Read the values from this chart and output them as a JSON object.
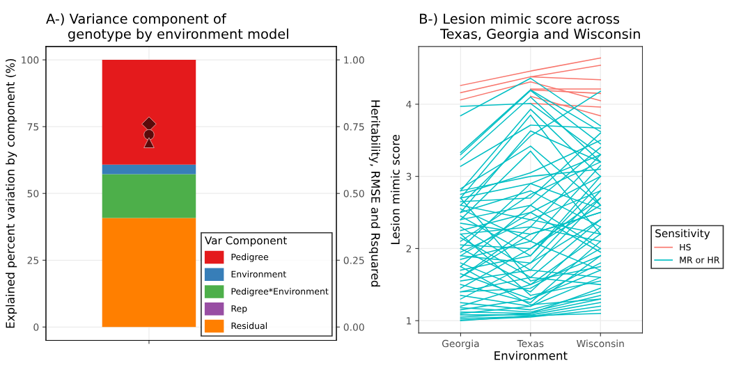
{
  "chart_data": [
    {
      "type": "bar",
      "stacked": true,
      "title": "A-) Variance component of\n     genotype by environment model",
      "ylabel": "Explained percent variation by component (%)",
      "y2label": "Heritability, RMSE and Rsquared",
      "legend_title": "Var Component",
      "legend": "bottom right",
      "grid": true,
      "categories": [
        null
      ],
      "ylim": [
        -5,
        105
      ],
      "yticks": [
        0,
        25,
        50,
        75,
        100
      ],
      "y2lim": [
        -0.05,
        1.05
      ],
      "y2ticks": [
        {
          "value": 0,
          "label": "0.00"
        },
        {
          "value": 0.25,
          "label": "0.25"
        },
        {
          "value": 0.5,
          "label": "0.50"
        },
        {
          "value": 0.75,
          "label": "0.75"
        },
        {
          "value": 1,
          "label": "1.00"
        }
      ],
      "series": [
        {
          "name": "Residual",
          "color": "#ff7f00",
          "values": [
            40.8
          ]
        },
        {
          "name": "Rep",
          "color": "#984ea3",
          "values": [
            0
          ]
        },
        {
          "name": "Pedigree*Environment",
          "color": "#4daf4a",
          "values": [
            16.4
          ]
        },
        {
          "name": "Environment",
          "color": "#377eb8",
          "values": [
            3.6
          ]
        },
        {
          "name": "Pedigree",
          "color": "#e41a1c",
          "values": [
            39.2
          ]
        },
        {
          "type": "scatter",
          "axis": "y2",
          "marker": "diamond",
          "color": "#5a0b0b",
          "values": [
            0.76
          ]
        },
        {
          "type": "scatter",
          "axis": "y2",
          "marker": "circle",
          "color": "#5a0b0b",
          "values": [
            0.72
          ]
        },
        {
          "type": "scatter",
          "axis": "y2",
          "marker": "triangle",
          "color": "#5a0b0b",
          "values": [
            0.69
          ]
        }
      ]
    },
    {
      "type": "line",
      "title": "B-) Lesion mimic score across\n     Texas, Georgia and Wisconsin",
      "xlabel": "Environment",
      "ylabel": "Lesion mimic score",
      "legend_title": "Sensitivity",
      "legend": "right",
      "grid": true,
      "categories": [
        "Georgia",
        "Texas",
        "Wisconsin"
      ],
      "ylim": [
        0.83,
        4.8
      ],
      "yticks": [
        1,
        2,
        3,
        4
      ],
      "series": [
        {
          "name": "HS",
          "color": "#f8766d",
          "values": [
            4.26,
            4.46,
            4.64
          ]
        },
        {
          "color": "#f8766d",
          "values": [
            4.16,
            4.38,
            4.54
          ]
        },
        {
          "color": "#f8766d",
          "values": [
            4.06,
            4.31,
            4.05
          ]
        },
        {
          "color": "#f8766d",
          "values": [
            null,
            4.38,
            4.34
          ]
        },
        {
          "color": "#f8766d",
          "values": [
            null,
            4.21,
            4.21
          ]
        },
        {
          "color": "#f8766d",
          "values": [
            null,
            4.2,
            4.15
          ]
        },
        {
          "color": "#f8766d",
          "values": [
            null,
            4.11,
            3.84
          ]
        },
        {
          "color": "#f8766d",
          "values": [
            null,
            4.01,
            3.96
          ]
        },
        {
          "name": "MR or HR",
          "color": "#00bfc4",
          "values": [
            3.84,
            4.36,
            3.7
          ]
        },
        {
          "color": "#00bfc4",
          "values": [
            3.97,
            4.01,
            3.3
          ]
        },
        {
          "color": "#00bfc4",
          "values": [
            3.33,
            4.2,
            3.62
          ]
        },
        {
          "color": "#00bfc4",
          "values": [
            3.3,
            4.19,
            3.45
          ]
        },
        {
          "color": "#00bfc4",
          "values": [
            3.23,
            4.1,
            3.2
          ]
        },
        {
          "color": "#00bfc4",
          "values": [
            2.8,
            3.93,
            3.0
          ]
        },
        {
          "color": "#00bfc4",
          "values": [
            2.7,
            3.85,
            2.6
          ]
        },
        {
          "color": "#00bfc4",
          "values": [
            3.14,
            3.71,
            3.67
          ]
        },
        {
          "color": "#00bfc4",
          "values": [
            2.6,
            3.56,
            4.18
          ]
        },
        {
          "color": "#00bfc4",
          "values": [
            2.5,
            3.63,
            3.2
          ]
        },
        {
          "color": "#00bfc4",
          "values": [
            2.83,
            3.42,
            2.6
          ]
        },
        {
          "color": "#00bfc4",
          "values": [
            2.4,
            3.35,
            2.2
          ]
        },
        {
          "color": "#00bfc4",
          "values": [
            2.8,
            3.0,
            3.1
          ]
        },
        {
          "color": "#00bfc4",
          "values": [
            2.75,
            3.05,
            3.5
          ]
        },
        {
          "color": "#00bfc4",
          "values": [
            2.7,
            2.9,
            3.3
          ]
        },
        {
          "color": "#00bfc4",
          "values": [
            2.65,
            2.7,
            3.6
          ]
        },
        {
          "color": "#00bfc4",
          "values": [
            2.6,
            2.4,
            2.8
          ]
        },
        {
          "color": "#00bfc4",
          "values": [
            2.55,
            2.1,
            3.15
          ]
        },
        {
          "color": "#00bfc4",
          "values": [
            2.5,
            2.8,
            2.3
          ]
        },
        {
          "color": "#00bfc4",
          "values": [
            2.45,
            1.9,
            2.9
          ]
        },
        {
          "color": "#00bfc4",
          "values": [
            2.4,
            2.6,
            3.4
          ]
        },
        {
          "color": "#00bfc4",
          "values": [
            2.35,
            2.2,
            2.5
          ]
        },
        {
          "color": "#00bfc4",
          "values": [
            2.3,
            1.7,
            2.7
          ]
        },
        {
          "color": "#00bfc4",
          "values": [
            2.25,
            2.5,
            3.0
          ]
        },
        {
          "color": "#00bfc4",
          "values": [
            2.2,
            2.3,
            2.1
          ]
        },
        {
          "color": "#00bfc4",
          "values": [
            2.15,
            1.6,
            2.4
          ]
        },
        {
          "color": "#00bfc4",
          "values": [
            2.1,
            2.75,
            3.2
          ]
        },
        {
          "color": "#00bfc4",
          "values": [
            2.05,
            2.0,
            2.6
          ]
        },
        {
          "color": "#00bfc4",
          "values": [
            2.0,
            1.5,
            1.9
          ]
        },
        {
          "color": "#00bfc4",
          "values": [
            1.95,
            2.4,
            2.2
          ]
        },
        {
          "color": "#00bfc4",
          "values": [
            1.9,
            1.8,
            2.8
          ]
        },
        {
          "color": "#00bfc4",
          "values": [
            1.85,
            2.1,
            1.7
          ]
        },
        {
          "color": "#00bfc4",
          "values": [
            1.8,
            1.4,
            2.3
          ]
        },
        {
          "color": "#00bfc4",
          "values": [
            1.75,
            2.6,
            2.0
          ]
        },
        {
          "color": "#00bfc4",
          "values": [
            1.7,
            1.9,
            3.0
          ]
        },
        {
          "color": "#00bfc4",
          "values": [
            1.65,
            1.3,
            1.8
          ]
        },
        {
          "color": "#00bfc4",
          "values": [
            1.6,
            2.2,
            2.5
          ]
        },
        {
          "color": "#00bfc4",
          "values": [
            1.55,
            1.7,
            1.6
          ]
        },
        {
          "color": "#00bfc4",
          "values": [
            1.5,
            1.25,
            2.1
          ]
        },
        {
          "color": "#00bfc4",
          "values": [
            1.45,
            2.0,
            2.7
          ]
        },
        {
          "color": "#00bfc4",
          "values": [
            1.4,
            1.6,
            1.5
          ]
        },
        {
          "color": "#00bfc4",
          "values": [
            1.35,
            1.2,
            1.9
          ]
        },
        {
          "color": "#00bfc4",
          "values": [
            1.3,
            1.8,
            2.4
          ]
        },
        {
          "color": "#00bfc4",
          "values": [
            1.25,
            1.15,
            1.4
          ]
        },
        {
          "color": "#00bfc4",
          "values": [
            1.2,
            1.5,
            2.2
          ]
        },
        {
          "color": "#00bfc4",
          "values": [
            1.18,
            1.12,
            1.35
          ]
        },
        {
          "color": "#00bfc4",
          "values": [
            1.15,
            1.3,
            1.7
          ]
        },
        {
          "color": "#00bfc4",
          "values": [
            1.12,
            1.1,
            1.3
          ]
        },
        {
          "color": "#00bfc4",
          "values": [
            1.1,
            1.2,
            1.6
          ]
        },
        {
          "color": "#00bfc4",
          "values": [
            1.08,
            1.08,
            1.25
          ]
        },
        {
          "color": "#00bfc4",
          "values": [
            1.05,
            1.1,
            1.45
          ]
        },
        {
          "color": "#00bfc4",
          "values": [
            1.03,
            1.06,
            1.2
          ]
        },
        {
          "color": "#00bfc4",
          "values": [
            1.01,
            1.05,
            1.15
          ]
        },
        {
          "color": "#00bfc4",
          "values": [
            1.0,
            1.07,
            1.1
          ]
        },
        {
          "color": "#00bfc4",
          "values": [
            1.9,
            2.5,
            1.95
          ]
        },
        {
          "color": "#00bfc4",
          "values": [
            2.0,
            2.9,
            2.55
          ]
        },
        {
          "color": "#00bfc4",
          "values": [
            1.6,
            2.3,
            3.3
          ]
        },
        {
          "color": "#00bfc4",
          "values": [
            1.4,
            1.45,
            2.0
          ]
        },
        {
          "color": "#00bfc4",
          "values": [
            2.7,
            1.55,
            1.75
          ]
        },
        {
          "color": "#00bfc4",
          "values": [
            2.2,
            1.35,
            1.55
          ]
        },
        {
          "color": "#00bfc4",
          "values": [
            1.75,
            1.22,
            1.3
          ]
        }
      ]
    }
  ]
}
